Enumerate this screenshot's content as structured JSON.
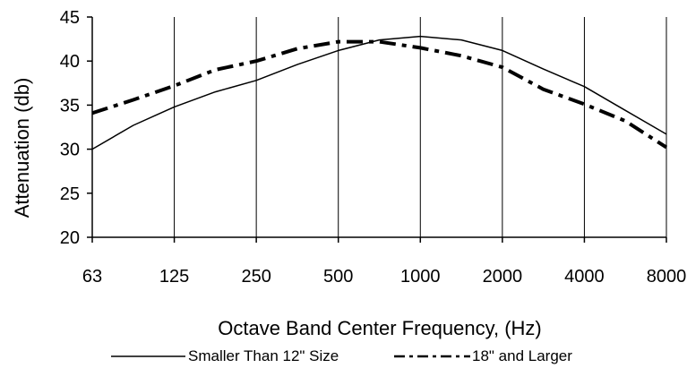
{
  "chart_data": {
    "type": "line",
    "title": "",
    "xlabel": "Octave Band Center Frequency, (Hz)",
    "ylabel": "Attenuation (db)",
    "categories": [
      "63",
      "125",
      "250",
      "500",
      "1000",
      "2000",
      "4000",
      "8000"
    ],
    "ylim": [
      20,
      45
    ],
    "yticks": [
      20,
      25,
      30,
      35,
      40,
      45
    ],
    "grid": "vertical",
    "legend_position": "bottom",
    "series": [
      {
        "name": "Smaller Than 12\" Size",
        "style": "solid",
        "color": "#000000",
        "x": [
          0,
          0.5,
          1,
          1.5,
          2,
          2.5,
          3,
          3.5,
          4,
          4.5,
          5,
          5.5,
          6,
          6.5,
          7
        ],
        "y": [
          30,
          32.7,
          34.8,
          36.5,
          37.8,
          39.6,
          41.2,
          42.4,
          42.8,
          42.4,
          41.2,
          39.1,
          37.1,
          34.4,
          31.7
        ]
      },
      {
        "name": "18\" and Larger",
        "style": "dash-dot",
        "color": "#000000",
        "x": [
          0,
          0.5,
          1,
          1.5,
          2,
          2.5,
          3,
          3.5,
          4,
          4.5,
          5,
          5.5,
          6,
          6.5,
          7
        ],
        "y": [
          34.1,
          35.6,
          37.2,
          39,
          40,
          41.4,
          42.2,
          42.2,
          41.5,
          40.6,
          39.3,
          36.8,
          35.1,
          33.2,
          30.2
        ]
      }
    ]
  }
}
